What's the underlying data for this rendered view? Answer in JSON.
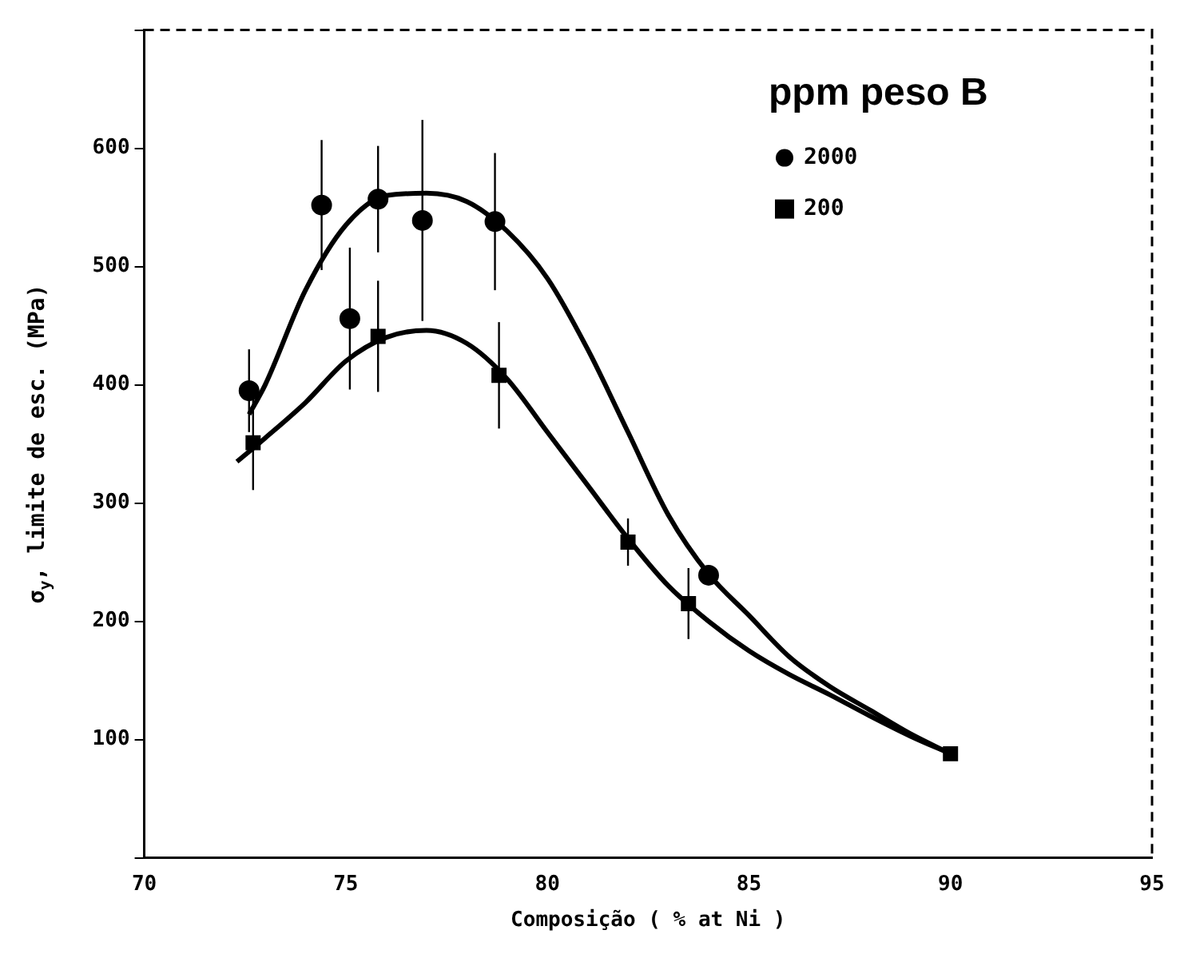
{
  "chart_data": {
    "type": "scatter",
    "xlabel": "Composição ( % at Ni )",
    "ylabel": "σ$_{y}$, limite de esc. (MPa)",
    "legend_title": "ppm peso B",
    "xlim": [
      70,
      95
    ],
    "xticks": [
      70,
      75,
      80,
      85,
      90,
      95
    ],
    "ylim": [
      0,
      700
    ],
    "yticks": [
      {
        "value": 0,
        "label": null
      },
      100,
      200,
      300,
      400,
      500,
      600,
      {
        "value": 700,
        "label": null
      }
    ],
    "grid": false,
    "legend": "top right",
    "series": [
      {
        "name": "2000",
        "type": "scatter",
        "marker": "circle",
        "color": "#000000",
        "x": [
          72.6,
          74.4,
          75.1,
          75.8,
          76.9,
          78.7,
          84.0
        ],
        "values": [
          395,
          552,
          456,
          557,
          539,
          538,
          239
        ],
        "errors": [
          35,
          55,
          60,
          45,
          85,
          58,
          null
        ]
      },
      {
        "name": "200",
        "type": "scatter",
        "marker": "square",
        "color": "#000000",
        "x": [
          72.7,
          75.8,
          78.8,
          82.0,
          83.5,
          90.0
        ],
        "values": [
          351,
          441,
          408,
          267,
          215,
          88
        ],
        "errors": [
          40,
          47,
          45,
          20,
          30,
          null
        ]
      },
      {
        "type": "line",
        "marker": "none",
        "color": "#000000",
        "x": [
          72.6,
          73,
          74,
          75,
          76,
          77,
          78,
          79,
          80,
          81,
          82,
          83,
          84,
          85,
          86,
          87,
          88,
          89,
          90
        ],
        "values": [
          375,
          400,
          480,
          535,
          560,
          562,
          555,
          530,
          490,
          430,
          360,
          290,
          240,
          205,
          170,
          145,
          125,
          105,
          88
        ]
      },
      {
        "type": "line",
        "marker": "none",
        "color": "#000000",
        "x": [
          72.3,
          73,
          74,
          75,
          76,
          77,
          78,
          79,
          80,
          81,
          82,
          83,
          84,
          85,
          86,
          87,
          88,
          89,
          90
        ],
        "values": [
          335,
          355,
          385,
          420,
          440,
          446,
          435,
          405,
          360,
          315,
          270,
          230,
          200,
          175,
          155,
          138,
          120,
          103,
          88
        ]
      }
    ]
  }
}
